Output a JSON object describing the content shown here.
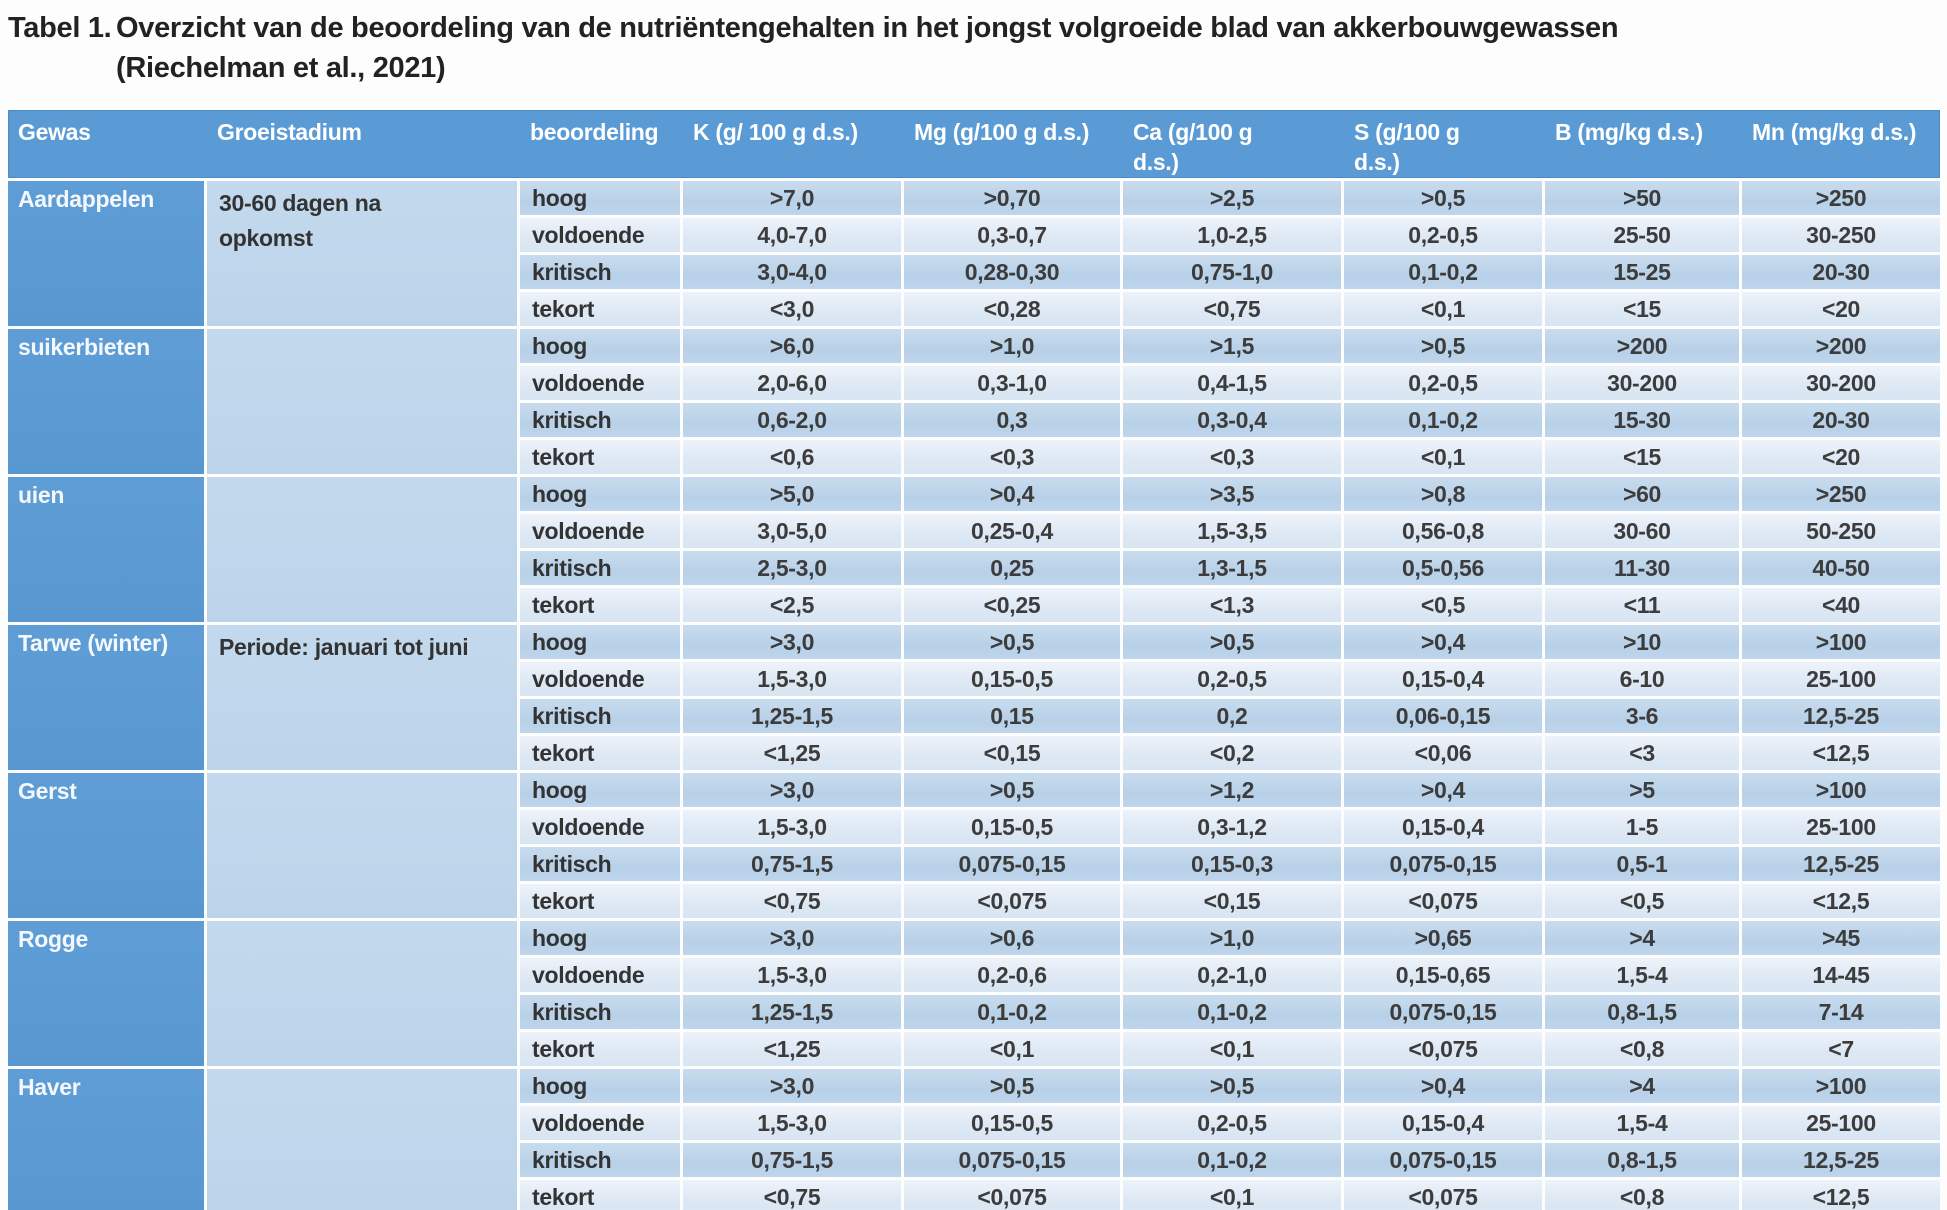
{
  "title": {
    "label": "Tabel 1.",
    "text": "Overzicht van de beoordeling van de nutriëntengehalten in het jongst volgroeide blad van akkerbouwgewassen",
    "source": "(Riechelman et al., 2021)"
  },
  "colors": {
    "header_blue": "#5b9bd5",
    "gewas_blue": "#5b9bd5",
    "groeistadium_blue": "#bed6ea",
    "row_dark": "#bdd7ee",
    "row_light": "#deebf7",
    "grid_line": "#ffffff",
    "text_dark": "#3c3c3c",
    "text_white": "#ffffff"
  },
  "table": {
    "headers": [
      "Gewas",
      "Groeistadium",
      "beoordeling",
      "K  (g/ 100 g d.s.)",
      "Mg (g/100 g d.s.)",
      "Ca (g/100 g\nd.s.)",
      "S (g/100 g\nd.s.)",
      "B (mg/kg d.s.)",
      "Mn (mg/kg d.s.)"
    ],
    "sections": [
      {
        "gewas": "Aardappelen",
        "groeistadium": "30-60 dagen na\nopkomst",
        "rows": [
          {
            "beoordeling": "hoog",
            "values": [
              ">7,0",
              ">0,70",
              ">2,5",
              ">0,5",
              ">50",
              ">250"
            ]
          },
          {
            "beoordeling": "voldoende",
            "values": [
              "4,0-7,0",
              "0,3-0,7",
              "1,0-2,5",
              "0,2-0,5",
              "25-50",
              "30-250"
            ]
          },
          {
            "beoordeling": "kritisch",
            "values": [
              "3,0-4,0",
              "0,28-0,30",
              "0,75-1,0",
              "0,1-0,2",
              "15-25",
              "20-30"
            ]
          },
          {
            "beoordeling": "tekort",
            "values": [
              "<3,0",
              "<0,28",
              "<0,75",
              "<0,1",
              "<15",
              "<20"
            ]
          }
        ]
      },
      {
        "gewas": "suikerbieten",
        "groeistadium": "",
        "rows": [
          {
            "beoordeling": "hoog",
            "values": [
              ">6,0",
              ">1,0",
              ">1,5",
              ">0,5",
              ">200",
              ">200"
            ]
          },
          {
            "beoordeling": "voldoende",
            "values": [
              "2,0-6,0",
              "0,3-1,0",
              "0,4-1,5",
              "0,2-0,5",
              "30-200",
              "30-200"
            ]
          },
          {
            "beoordeling": "kritisch",
            "values": [
              "0,6-2,0",
              "0,3",
              "0,3-0,4",
              "0,1-0,2",
              "15-30",
              "20-30"
            ]
          },
          {
            "beoordeling": "tekort",
            "values": [
              "<0,6",
              "<0,3",
              "<0,3",
              "<0,1",
              "<15",
              "<20"
            ]
          }
        ]
      },
      {
        "gewas": "uien",
        "groeistadium": "",
        "rows": [
          {
            "beoordeling": "hoog",
            "values": [
              ">5,0",
              ">0,4",
              ">3,5",
              ">0,8",
              ">60",
              ">250"
            ]
          },
          {
            "beoordeling": "voldoende",
            "values": [
              "3,0-5,0",
              "0,25-0,4",
              "1,5-3,5",
              "0,56-0,8",
              "30-60",
              "50-250"
            ]
          },
          {
            "beoordeling": "kritisch",
            "values": [
              "2,5-3,0",
              "0,25",
              "1,3-1,5",
              "0,5-0,56",
              "11-30",
              "40-50"
            ]
          },
          {
            "beoordeling": "tekort",
            "values": [
              "<2,5",
              "<0,25",
              "<1,3",
              "<0,5",
              "<11",
              "<40"
            ]
          }
        ]
      },
      {
        "gewas": "Tarwe (winter)",
        "groeistadium": "Periode: januari tot juni",
        "rows": [
          {
            "beoordeling": "hoog",
            "values": [
              ">3,0",
              ">0,5",
              ">0,5",
              ">0,4",
              ">10",
              ">100"
            ]
          },
          {
            "beoordeling": "voldoende",
            "values": [
              "1,5-3,0",
              "0,15-0,5",
              "0,2-0,5",
              "0,15-0,4",
              "6-10",
              "25-100"
            ]
          },
          {
            "beoordeling": "kritisch",
            "values": [
              "1,25-1,5",
              "0,15",
              "0,2",
              "0,06-0,15",
              "3-6",
              "12,5-25"
            ]
          },
          {
            "beoordeling": "tekort",
            "values": [
              "<1,25",
              "<0,15",
              "<0,2",
              "<0,06",
              "<3",
              "<12,5"
            ]
          }
        ]
      },
      {
        "gewas": "Gerst",
        "groeistadium": "",
        "rows": [
          {
            "beoordeling": "hoog",
            "values": [
              ">3,0",
              ">0,5",
              ">1,2",
              ">0,4",
              ">5",
              ">100"
            ]
          },
          {
            "beoordeling": "voldoende",
            "values": [
              "1,5-3,0",
              "0,15-0,5",
              "0,3-1,2",
              "0,15-0,4",
              "1-5",
              "25-100"
            ]
          },
          {
            "beoordeling": "kritisch",
            "values": [
              "0,75-1,5",
              "0,075-0,15",
              "0,15-0,3",
              "0,075-0,15",
              "0,5-1",
              "12,5-25"
            ]
          },
          {
            "beoordeling": "tekort",
            "values": [
              "<0,75",
              "<0,075",
              "<0,15",
              "<0,075",
              "<0,5",
              "<12,5"
            ]
          }
        ]
      },
      {
        "gewas": "Rogge",
        "groeistadium": "",
        "rows": [
          {
            "beoordeling": "hoog",
            "values": [
              ">3,0",
              ">0,6",
              ">1,0",
              ">0,65",
              ">4",
              ">45"
            ]
          },
          {
            "beoordeling": "voldoende",
            "values": [
              "1,5-3,0",
              "0,2-0,6",
              "0,2-1,0",
              "0,15-0,65",
              "1,5-4",
              "14-45"
            ]
          },
          {
            "beoordeling": "kritisch",
            "values": [
              "1,25-1,5",
              "0,1-0,2",
              "0,1-0,2",
              "0,075-0,15",
              "0,8-1,5",
              "7-14"
            ]
          },
          {
            "beoordeling": "tekort",
            "values": [
              "<1,25",
              "<0,1",
              "<0,1",
              "<0,075",
              "<0,8",
              "<7"
            ]
          }
        ]
      },
      {
        "gewas": "Haver",
        "groeistadium": "",
        "rows": [
          {
            "beoordeling": "hoog",
            "values": [
              ">3,0",
              ">0,5",
              ">0,5",
              ">0,4",
              ">4",
              ">100"
            ]
          },
          {
            "beoordeling": "voldoende",
            "values": [
              "1,5-3,0",
              "0,15-0,5",
              "0,2-0,5",
              "0,15-0,4",
              "1,5-4",
              "25-100"
            ]
          },
          {
            "beoordeling": "kritisch",
            "values": [
              "0,75-1,5",
              "0,075-0,15",
              "0,1-0,2",
              "0,075-0,15",
              "0,8-1,5",
              "12,5-25"
            ]
          },
          {
            "beoordeling": "tekort",
            "values": [
              "<0,75",
              "<0,075",
              "<0,1",
              "<0,075",
              "<0,8",
              "<12,5"
            ]
          }
        ]
      }
    ]
  }
}
